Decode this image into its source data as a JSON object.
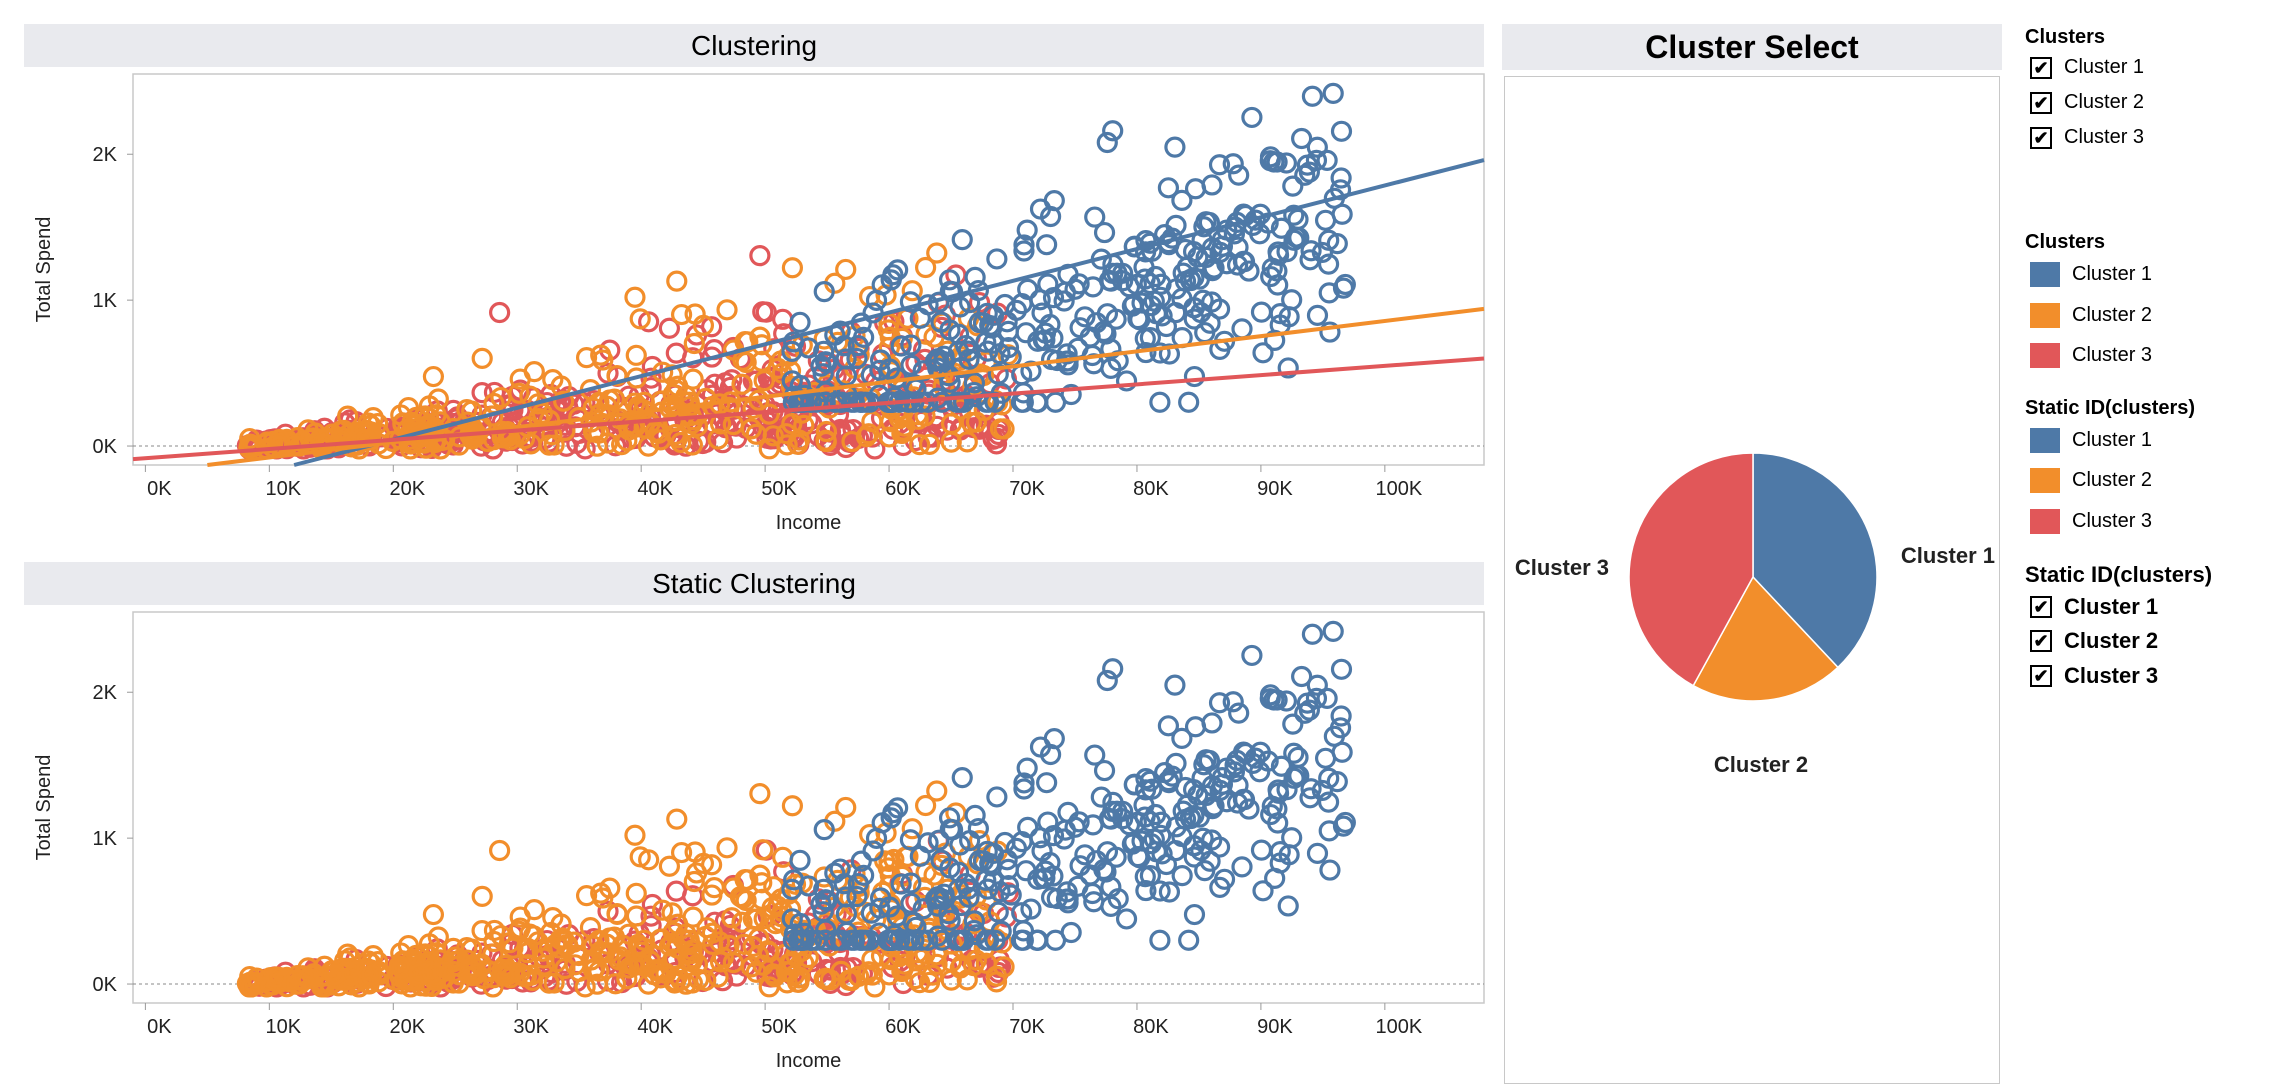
{
  "panels": {
    "clustering_title": "Clustering",
    "static_title": "Static Clustering",
    "cluster_select_title": "Cluster Select"
  },
  "axes": {
    "y_label": "Total Spend",
    "x_label": "Income",
    "y_ticks": [
      "0K",
      "1K",
      "2K"
    ],
    "x_ticks": [
      "0K",
      "10K",
      "20K",
      "30K",
      "40K",
      "50K",
      "60K",
      "70K",
      "80K",
      "90K",
      "100K"
    ]
  },
  "colors": {
    "cluster1": "#4e79a7",
    "cluster2": "#f28e2b",
    "cluster3": "#e15759"
  },
  "pie": {
    "label1": "Cluster 1",
    "label2": "Cluster 2",
    "label3": "Cluster 3"
  },
  "legends": {
    "filter1": {
      "title": "Clusters",
      "items": [
        "Cluster 1",
        "Cluster 2",
        "Cluster 3"
      ]
    },
    "color1": {
      "title": "Clusters",
      "items": [
        "Cluster 1",
        "Cluster 2",
        "Cluster 3"
      ]
    },
    "color2": {
      "title": "Static ID(clusters)",
      "items": [
        "Cluster 1",
        "Cluster 2",
        "Cluster 3"
      ]
    },
    "filter2": {
      "title": "Static ID(clusters)",
      "items": [
        "Cluster 1",
        "Cluster 2",
        "Cluster 3"
      ]
    },
    "check_glyph": "✔"
  },
  "chart_data": [
    {
      "type": "scatter",
      "title": "Clustering",
      "xlabel": "Income",
      "ylabel": "Total Spend",
      "xlim": [
        -1000,
        108000
      ],
      "ylim": [
        -130,
        2550
      ],
      "reference_line_y": 0,
      "series": [
        {
          "name": "Cluster 1",
          "color": "#4e79a7",
          "trend": {
            "x": [
              12000,
              108000
            ],
            "y": [
              -130,
              1960
            ]
          }
        },
        {
          "name": "Cluster 2",
          "color": "#f28e2b",
          "trend": {
            "x": [
              5000,
              108000
            ],
            "y": [
              -130,
              940
            ]
          }
        },
        {
          "name": "Cluster 3",
          "color": "#e15759",
          "trend": {
            "x": [
              -1000,
              108000
            ],
            "y": [
              -90,
              600
            ]
          }
        }
      ]
    },
    {
      "type": "scatter",
      "title": "Static Clustering",
      "xlabel": "Income",
      "ylabel": "Total Spend",
      "xlim": [
        -1000,
        108000
      ],
      "ylim": [
        -130,
        2550
      ],
      "reference_line_y": 0,
      "series": [
        {
          "name": "Cluster 1",
          "color": "#4e79a7"
        },
        {
          "name": "Cluster 2",
          "color": "#f28e2b"
        },
        {
          "name": "Cluster 3",
          "color": "#e15759"
        }
      ]
    },
    {
      "type": "pie",
      "title": "Cluster Select",
      "categories": [
        "Cluster 1",
        "Cluster 2",
        "Cluster 3"
      ],
      "values": [
        38,
        20,
        42
      ],
      "colors": [
        "#4e79a7",
        "#f28e2b",
        "#e15759"
      ]
    }
  ]
}
